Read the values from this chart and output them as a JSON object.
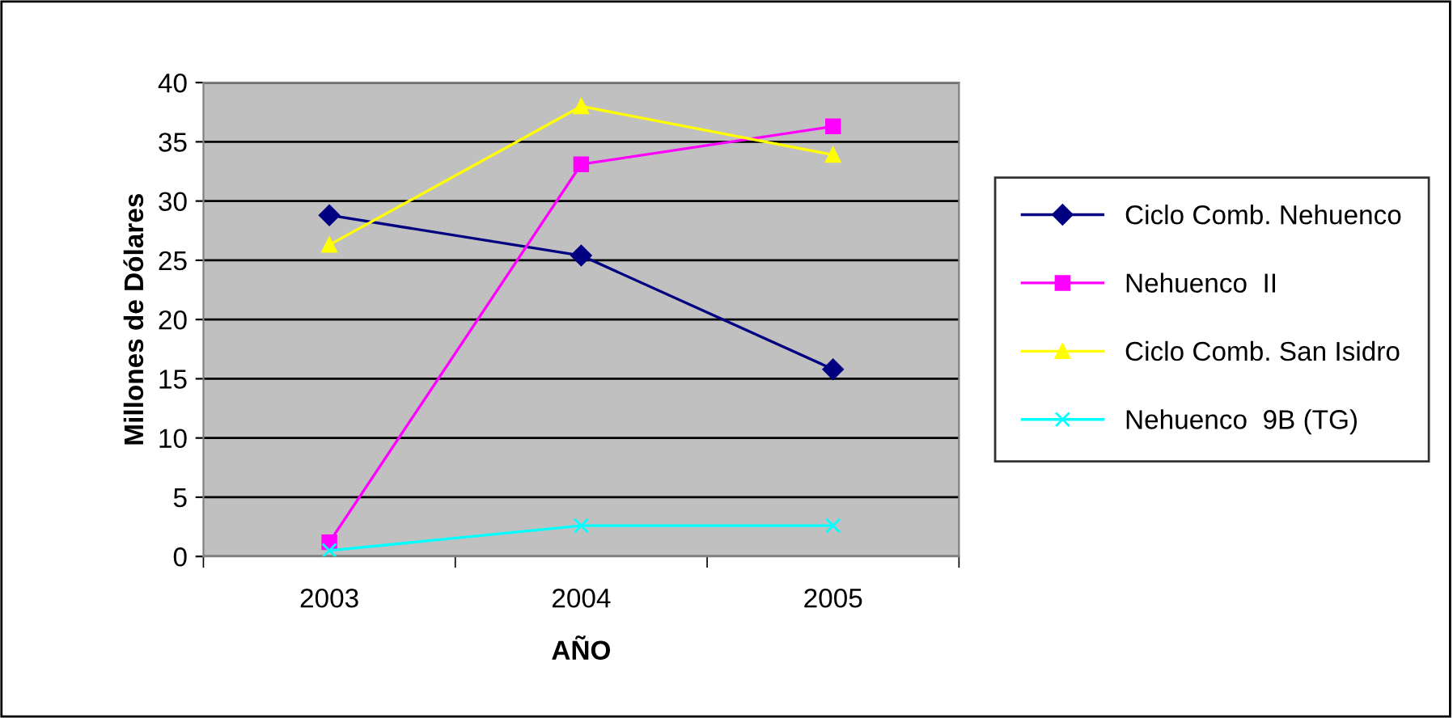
{
  "chart_data": {
    "type": "line",
    "xlabel": "AÑO",
    "ylabel": "Millones de Dólares",
    "categories": [
      "2003",
      "2004",
      "2005"
    ],
    "series": [
      {
        "name": "Ciclo Comb. Nehuenco",
        "color": "#000080",
        "marker": "diamond",
        "values": [
          28.8,
          25.4,
          15.8
        ]
      },
      {
        "name": "Nehuenco  II",
        "color": "#ff00ff",
        "marker": "square",
        "values": [
          1.2,
          33.1,
          36.3
        ]
      },
      {
        "name": "Ciclo Comb. San Isidro",
        "color": "#ffff00",
        "marker": "triangle",
        "values": [
          26.3,
          38.0,
          33.9
        ]
      },
      {
        "name": "Nehuenco  9B (TG)",
        "color": "#00ffff",
        "marker": "cross",
        "values": [
          0.5,
          2.6,
          2.6
        ]
      }
    ],
    "ylim": [
      0,
      40
    ],
    "yticks": [
      0,
      5,
      10,
      15,
      20,
      25,
      30,
      35,
      40
    ],
    "grid": "y",
    "legend": "right",
    "line_style": "solid"
  }
}
